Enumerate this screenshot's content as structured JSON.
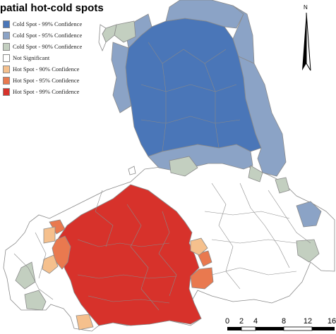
{
  "title": "patial hot-cold spots",
  "legend": [
    {
      "label": "Cold Spot - 99% Confidence",
      "color": "#4a76b8"
    },
    {
      "label": "Cold Spot - 95% Confidence",
      "color": "#8ba3c6"
    },
    {
      "label": "Cold Spot - 90% Confidence",
      "color": "#c3cfc0"
    },
    {
      "label": "Not Significant",
      "color": "#ffffff"
    },
    {
      "label": "Hot Spot - 90% Confidence",
      "color": "#f5c08d"
    },
    {
      "label": "Hot Spot - 95% Confidence",
      "color": "#e9794f"
    },
    {
      "label": "Hot Spot - 99% Confidence",
      "color": "#d7322b"
    }
  ],
  "north_arrow": {
    "label": "N"
  },
  "scale_bar": {
    "labels": [
      "0",
      "2",
      "4",
      "8",
      "12",
      "16"
    ]
  },
  "colors": {
    "boundary": "#8a8a8a",
    "background": "#ffffff"
  }
}
